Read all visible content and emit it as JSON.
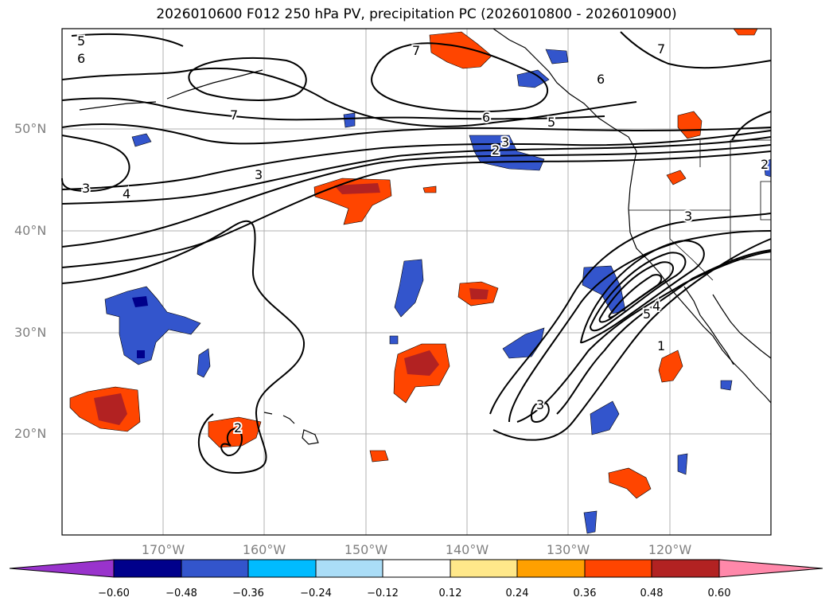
{
  "title": "2026010600 F012 250 hPa PV, precipitation PC (2026010800 - 2026010900)",
  "map": {
    "lat_labels": [
      "50°N",
      "40°N",
      "30°N",
      "20°N"
    ],
    "lon_labels": [
      "170°W",
      "160°W",
      "150°W",
      "140°W",
      "130°W",
      "120°W"
    ],
    "contour_labels": [
      "5",
      "6",
      "7",
      "7",
      "6",
      "5",
      "3",
      "2",
      "3",
      "4",
      "7",
      "3",
      "2",
      "6",
      "5",
      "4",
      "1",
      "3",
      "2",
      "3"
    ]
  },
  "colorbar": {
    "colors": [
      "#9933cc",
      "#00008b",
      "#3355cc",
      "#00bbff",
      "#aaddf7",
      "#ffffff",
      "#ffe88a",
      "#ffa000",
      "#ff4500",
      "#b22222",
      "#ff88aa"
    ],
    "tick_labels": [
      "−0.60",
      "−0.48",
      "−0.36",
      "−0.24",
      "−0.12",
      "0.12",
      "0.24",
      "0.36",
      "0.48",
      "0.60"
    ]
  }
}
